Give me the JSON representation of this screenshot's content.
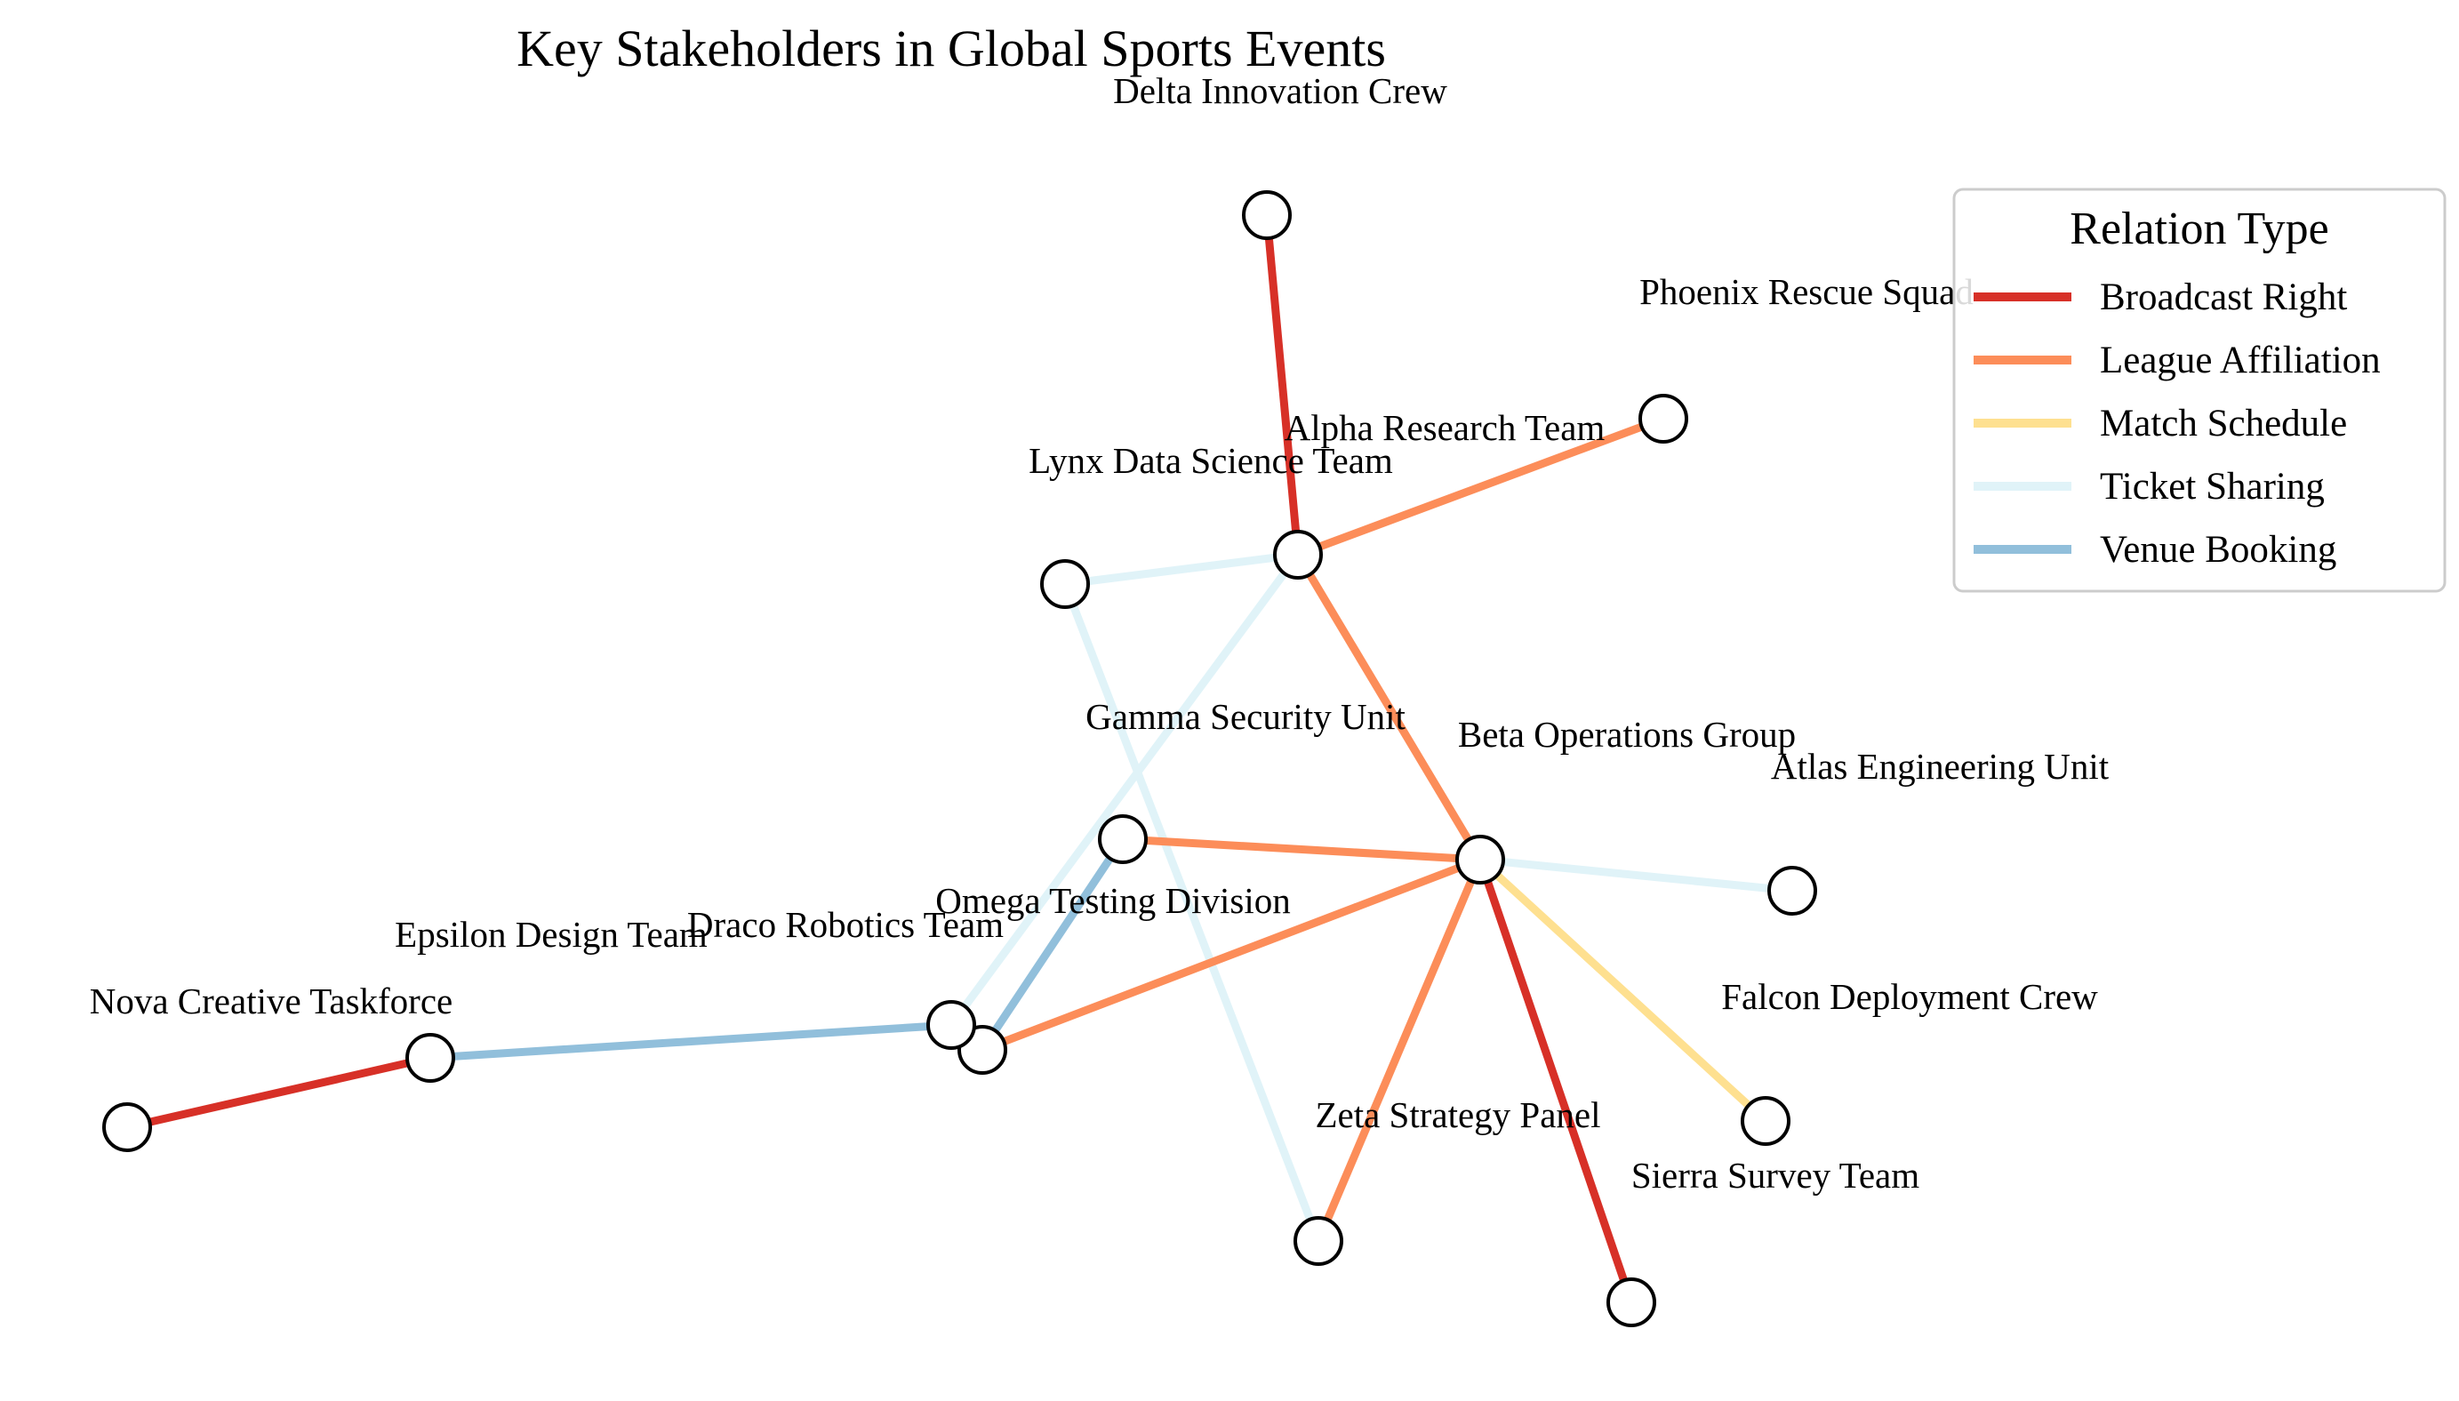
{
  "title": "Key Stakeholders in Global Sports Events",
  "legend": {
    "title": "Relation Type",
    "placement": "top-right",
    "items": [
      {
        "label": "Broadcast Right",
        "color": "#d73027"
      },
      {
        "label": "League Affiliation",
        "color": "#fc8d59"
      },
      {
        "label": "Match Schedule",
        "color": "#fee090"
      },
      {
        "label": "Ticket Sharing",
        "color": "#e0f3f8"
      },
      {
        "label": "Venue Booking",
        "color": "#91bfdb"
      }
    ]
  },
  "nodes": [
    {
      "id": "delta",
      "label": "Delta Innovation Crew"
    },
    {
      "id": "phoenix",
      "label": "Phoenix Rescue Squad"
    },
    {
      "id": "alpha",
      "label": "Alpha Research Team"
    },
    {
      "id": "lynx",
      "label": "Lynx Data Science Team"
    },
    {
      "id": "gamma",
      "label": "Gamma Security Unit"
    },
    {
      "id": "beta",
      "label": "Beta Operations Group"
    },
    {
      "id": "atlas",
      "label": "Atlas Engineering Unit"
    },
    {
      "id": "falcon",
      "label": "Falcon Deployment Crew"
    },
    {
      "id": "omega",
      "label": "Omega Testing Division"
    },
    {
      "id": "draco",
      "label": "Draco Robotics Team"
    },
    {
      "id": "epsilon",
      "label": "Epsilon Design Team"
    },
    {
      "id": "nova",
      "label": "Nova Creative Taskforce"
    },
    {
      "id": "zeta",
      "label": "Zeta Strategy Panel"
    },
    {
      "id": "sierra",
      "label": "Sierra Survey Team"
    }
  ],
  "edges": [
    {
      "source": "delta",
      "target": "alpha",
      "relation": "Broadcast Right"
    },
    {
      "source": "alpha",
      "target": "phoenix",
      "relation": "League Affiliation"
    },
    {
      "source": "alpha",
      "target": "lynx",
      "relation": "Ticket Sharing"
    },
    {
      "source": "alpha",
      "target": "beta",
      "relation": "League Affiliation"
    },
    {
      "source": "alpha",
      "target": "draco",
      "relation": "Ticket Sharing"
    },
    {
      "source": "lynx",
      "target": "zeta",
      "relation": "Ticket Sharing"
    },
    {
      "source": "gamma",
      "target": "beta",
      "relation": "League Affiliation"
    },
    {
      "source": "gamma",
      "target": "omega",
      "relation": "Venue Booking"
    },
    {
      "source": "beta",
      "target": "atlas",
      "relation": "Ticket Sharing"
    },
    {
      "source": "beta",
      "target": "falcon",
      "relation": "Match Schedule"
    },
    {
      "source": "beta",
      "target": "zeta",
      "relation": "League Affiliation"
    },
    {
      "source": "beta",
      "target": "sierra",
      "relation": "Broadcast Right"
    },
    {
      "source": "beta",
      "target": "omega",
      "relation": "League Affiliation"
    },
    {
      "source": "draco",
      "target": "epsilon",
      "relation": "Venue Booking"
    },
    {
      "source": "epsilon",
      "target": "nova",
      "relation": "Broadcast Right"
    }
  ]
}
